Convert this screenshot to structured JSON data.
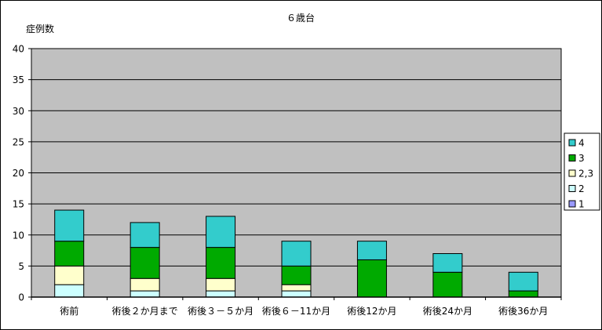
{
  "chart_data": {
    "type": "bar",
    "stacked": true,
    "title": "６歳台",
    "ylabel": "症例数",
    "xlabel": "",
    "ylim": [
      0,
      40
    ],
    "yticks": [
      0,
      5,
      10,
      15,
      20,
      25,
      30,
      35,
      40
    ],
    "grid": true,
    "legend_position": "right",
    "categories": [
      "術前",
      "術後２か月まで",
      "術後３－５か月",
      "術後６－11か月",
      "術後12か月",
      "術後24か月",
      "術後36か月"
    ],
    "series": [
      {
        "name": "1",
        "color": "#9999ff",
        "values": [
          0,
          0,
          0,
          0,
          0,
          0,
          0
        ]
      },
      {
        "name": "2",
        "color": "#ccffff",
        "values": [
          2,
          1,
          1,
          1,
          0,
          0,
          0
        ]
      },
      {
        "name": "2,3",
        "color": "#ffffcc",
        "values": [
          3,
          2,
          2,
          1,
          0,
          0,
          0
        ]
      },
      {
        "name": "3",
        "color": "#00aa00",
        "values": [
          4,
          5,
          5,
          3,
          6,
          4,
          1
        ]
      },
      {
        "name": "4",
        "color": "#33cccc",
        "values": [
          5,
          4,
          5,
          4,
          3,
          3,
          3
        ]
      }
    ],
    "plot_background": "#c0c0c0"
  }
}
